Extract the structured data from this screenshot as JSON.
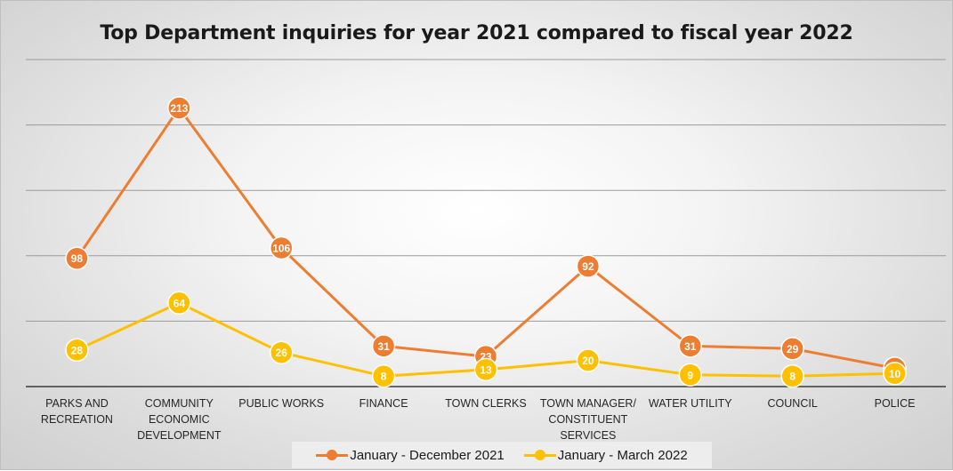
{
  "chart_data": {
    "type": "line",
    "title": "Top Department inquiries for year 2021 compared to fiscal year 2022",
    "xlabel": "",
    "ylabel": "",
    "ylim": [
      0,
      250
    ],
    "grid": true,
    "legend_position": "bottom",
    "categories": [
      "PARKS AND RECREATION",
      "COMMUNITY ECONOMIC DEVELOPMENT",
      "PUBLIC WORKS",
      "FINANCE",
      "TOWN CLERKS",
      "TOWN MANAGER/ CONSTITUENT SERVICES",
      "WATER UTILITY",
      "COUNCIL",
      "POLICE"
    ],
    "series": [
      {
        "name": "January - December 2021",
        "color": "#ED7D31",
        "values": [
          98,
          213,
          106,
          31,
          23,
          92,
          31,
          29,
          14
        ]
      },
      {
        "name": "January - March 2022",
        "color": "#FFC000",
        "values": [
          28,
          64,
          26,
          8,
          13,
          20,
          9,
          8,
          10
        ]
      }
    ]
  }
}
